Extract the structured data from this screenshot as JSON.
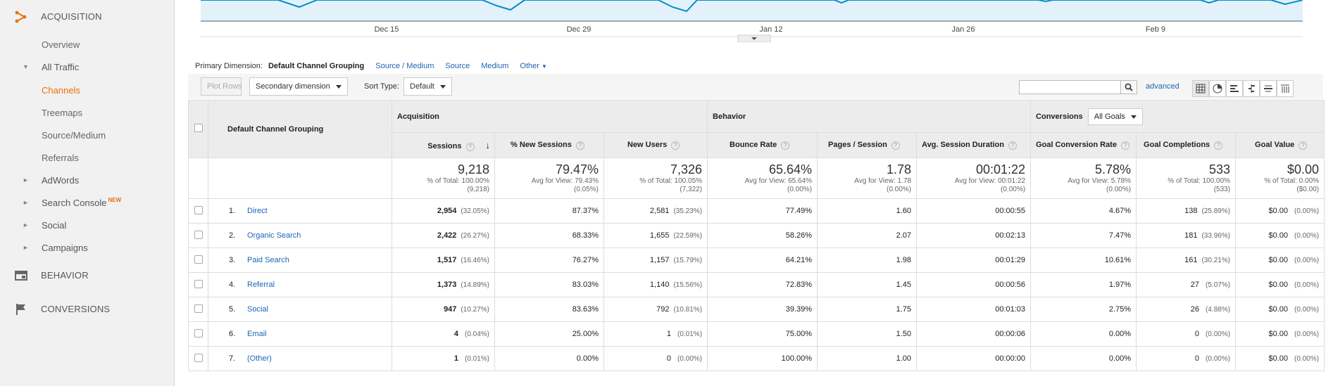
{
  "sidebar": {
    "acquisition": "ACQUISITION",
    "items": [
      {
        "label": "Overview"
      },
      {
        "label": "All Traffic"
      },
      {
        "label": "Channels"
      },
      {
        "label": "Treemaps"
      },
      {
        "label": "Source/Medium"
      },
      {
        "label": "Referrals"
      },
      {
        "label": "AdWords"
      },
      {
        "label": "Search Console",
        "badge": "NEW"
      },
      {
        "label": "Social"
      },
      {
        "label": "Campaigns"
      }
    ],
    "behavior": "BEHAVIOR",
    "conversions": "CONVERSIONS",
    "accent": "#e8710a"
  },
  "timeline": {
    "dates": [
      "Dec 15",
      "Dec 29",
      "Jan 12",
      "Jan 26",
      "Feb 9"
    ]
  },
  "dimension_bar": {
    "label": "Primary Dimension:",
    "current": "Default Channel Grouping",
    "options": [
      "Source / Medium",
      "Source",
      "Medium",
      "Other"
    ]
  },
  "toolbar": {
    "plot_rows": "Plot Rows",
    "secondary_dimension": "Secondary dimension",
    "sort_type_label": "Sort Type:",
    "sort_type_value": "Default",
    "search_value": "",
    "advanced": "advanced"
  },
  "table": {
    "dimension_header": "Default Channel Grouping",
    "group_acquisition": "Acquisition",
    "group_behavior": "Behavior",
    "group_conversions": "Conversions",
    "goals_select": "All Goals",
    "columns": [
      "Sessions",
      "% New Sessions",
      "New Users",
      "Bounce Rate",
      "Pages / Session",
      "Avg. Session Duration",
      "Goal Conversion Rate",
      "Goal Completions",
      "Goal Value"
    ],
    "totals": [
      {
        "value": "9,218",
        "sub1": "% of Total: 100.00%",
        "sub2": "(9,218)"
      },
      {
        "value": "79.47%",
        "sub1": "Avg for View: 79.43%",
        "sub2": "(0.05%)"
      },
      {
        "value": "7,326",
        "sub1": "% of Total: 100.05%",
        "sub2": "(7,322)"
      },
      {
        "value": "65.64%",
        "sub1": "Avg for View: 65.64%",
        "sub2": "(0.00%)"
      },
      {
        "value": "1.78",
        "sub1": "Avg for View: 1.78",
        "sub2": "(0.00%)"
      },
      {
        "value": "00:01:22",
        "sub1": "Avg for View: 00:01:22",
        "sub2": "(0.00%)"
      },
      {
        "value": "5.78%",
        "sub1": "Avg for View: 5.78%",
        "sub2": "(0.00%)"
      },
      {
        "value": "533",
        "sub1": "% of Total: 100.00%",
        "sub2": "(533)"
      },
      {
        "value": "$0.00",
        "sub1": "% of Total: 0.00%",
        "sub2": "($0.00)"
      }
    ],
    "rows": [
      {
        "idx": "1.",
        "name": "Direct",
        "sessions": "2,954",
        "sessions_pct": "(32.05%)",
        "new_sessions": "87.37%",
        "new_users": "2,581",
        "new_users_pct": "(35.23%)",
        "bounce": "77.49%",
        "pages": "1.60",
        "duration": "00:00:55",
        "conv_rate": "4.67%",
        "completions": "138",
        "completions_pct": "(25.89%)",
        "goal_value": "$0.00",
        "goal_value_pct": "(0.00%)"
      },
      {
        "idx": "2.",
        "name": "Organic Search",
        "sessions": "2,422",
        "sessions_pct": "(26.27%)",
        "new_sessions": "68.33%",
        "new_users": "1,655",
        "new_users_pct": "(22.59%)",
        "bounce": "58.26%",
        "pages": "2.07",
        "duration": "00:02:13",
        "conv_rate": "7.47%",
        "completions": "181",
        "completions_pct": "(33.96%)",
        "goal_value": "$0.00",
        "goal_value_pct": "(0.00%)"
      },
      {
        "idx": "3.",
        "name": "Paid Search",
        "sessions": "1,517",
        "sessions_pct": "(16.46%)",
        "new_sessions": "76.27%",
        "new_users": "1,157",
        "new_users_pct": "(15.79%)",
        "bounce": "64.21%",
        "pages": "1.98",
        "duration": "00:01:29",
        "conv_rate": "10.61%",
        "completions": "161",
        "completions_pct": "(30.21%)",
        "goal_value": "$0.00",
        "goal_value_pct": "(0.00%)"
      },
      {
        "idx": "4.",
        "name": "Referral",
        "sessions": "1,373",
        "sessions_pct": "(14.89%)",
        "new_sessions": "83.03%",
        "new_users": "1,140",
        "new_users_pct": "(15.56%)",
        "bounce": "72.83%",
        "pages": "1.45",
        "duration": "00:00:56",
        "conv_rate": "1.97%",
        "completions": "27",
        "completions_pct": "(5.07%)",
        "goal_value": "$0.00",
        "goal_value_pct": "(0.00%)"
      },
      {
        "idx": "5.",
        "name": "Social",
        "sessions": "947",
        "sessions_pct": "(10.27%)",
        "new_sessions": "83.63%",
        "new_users": "792",
        "new_users_pct": "(10.81%)",
        "bounce": "39.39%",
        "pages": "1.75",
        "duration": "00:01:03",
        "conv_rate": "2.75%",
        "completions": "26",
        "completions_pct": "(4.88%)",
        "goal_value": "$0.00",
        "goal_value_pct": "(0.00%)"
      },
      {
        "idx": "6.",
        "name": "Email",
        "sessions": "4",
        "sessions_pct": "(0.04%)",
        "new_sessions": "25.00%",
        "new_users": "1",
        "new_users_pct": "(0.01%)",
        "bounce": "75.00%",
        "pages": "1.50",
        "duration": "00:00:06",
        "conv_rate": "0.00%",
        "completions": "0",
        "completions_pct": "(0.00%)",
        "goal_value": "$0.00",
        "goal_value_pct": "(0.00%)"
      },
      {
        "idx": "7.",
        "name": "(Other)",
        "sessions": "1",
        "sessions_pct": "(0.01%)",
        "new_sessions": "0.00%",
        "new_users": "0",
        "new_users_pct": "(0.00%)",
        "bounce": "100.00%",
        "pages": "1.00",
        "duration": "00:00:00",
        "conv_rate": "0.00%",
        "completions": "0",
        "completions_pct": "(0.00%)",
        "goal_value": "$0.00",
        "goal_value_pct": "(0.00%)"
      }
    ]
  }
}
